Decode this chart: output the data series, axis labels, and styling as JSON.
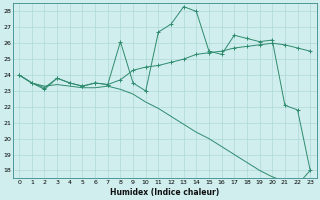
{
  "xlabel": "Humidex (Indice chaleur)",
  "x": [
    0,
    1,
    2,
    3,
    4,
    5,
    6,
    7,
    8,
    9,
    10,
    11,
    12,
    13,
    14,
    15,
    16,
    17,
    18,
    19,
    20,
    21,
    22,
    23
  ],
  "line1": [
    24.0,
    23.5,
    23.1,
    23.8,
    23.5,
    23.3,
    23.5,
    23.4,
    26.1,
    23.5,
    23.0,
    26.7,
    27.2,
    28.3,
    28.0,
    25.5,
    25.3,
    26.5,
    26.3,
    26.1,
    26.2,
    22.1,
    21.8,
    18.0
  ],
  "line2": [
    24.0,
    23.5,
    23.2,
    23.8,
    23.5,
    23.3,
    23.5,
    23.4,
    23.7,
    24.3,
    24.5,
    24.6,
    24.8,
    25.0,
    25.3,
    25.4,
    25.5,
    25.7,
    25.8,
    25.9,
    26.0,
    25.9,
    25.7,
    25.5
  ],
  "line3": [
    24.0,
    23.5,
    23.3,
    23.4,
    23.3,
    23.2,
    23.2,
    23.3,
    23.1,
    22.8,
    22.3,
    21.9,
    21.4,
    20.9,
    20.4,
    20.0,
    19.5,
    19.0,
    18.5,
    18.0,
    17.6,
    17.3,
    17.1,
    18.0
  ],
  "color": "#2e8b6e",
  "bg_color": "#d0eeee",
  "grid_color": "#b0d8d8",
  "ylim_min": 17.5,
  "ylim_max": 28.5,
  "xlim_min": -0.5,
  "xlim_max": 23.5,
  "yticks": [
    18,
    19,
    20,
    21,
    22,
    23,
    24,
    25,
    26,
    27,
    28
  ],
  "xticks": [
    0,
    1,
    2,
    3,
    4,
    5,
    6,
    7,
    8,
    9,
    10,
    11,
    12,
    13,
    14,
    15,
    16,
    17,
    18,
    19,
    20,
    21,
    22,
    23
  ]
}
